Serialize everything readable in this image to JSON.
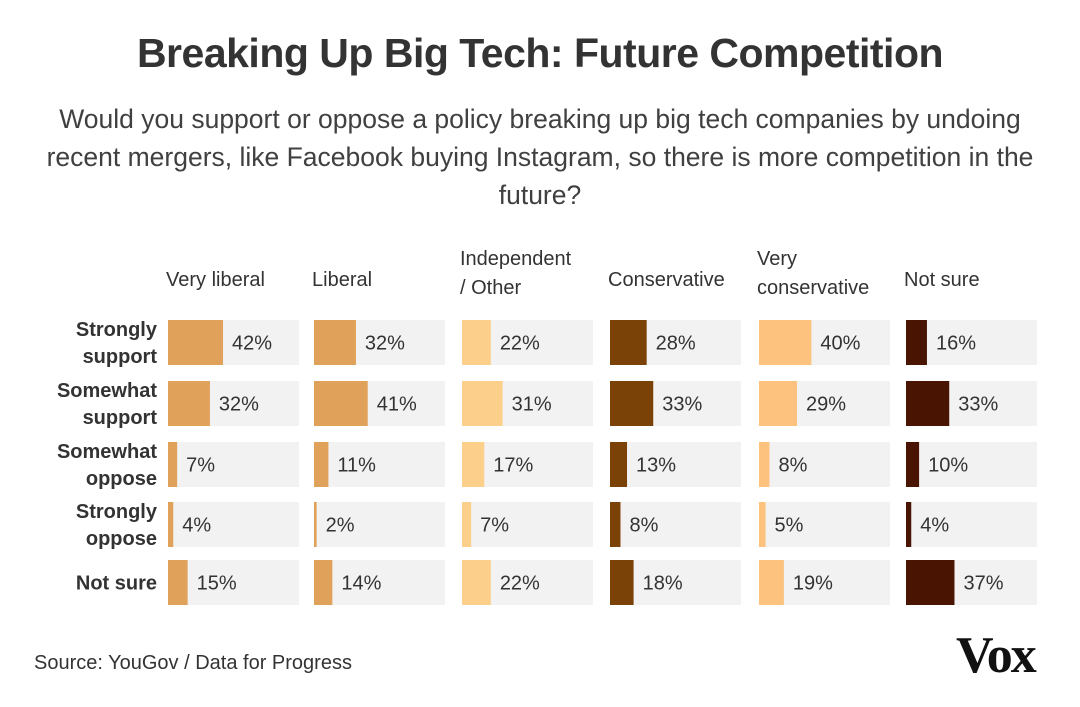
{
  "title": "Breaking Up Big Tech: Future Competition",
  "subtitle": "Would you support or oppose a policy breaking up big tech companies by undoing recent mergers, like Facebook buying Instagram, so there is more competition in the future?",
  "source": "Source: YouGov / Data for Progress",
  "logo": "Vox",
  "chart_data": {
    "type": "bar",
    "orientation": "horizontal-small-multiples",
    "unit": "%",
    "xlim": [
      0,
      100
    ],
    "grid": false,
    "columns": [
      {
        "name": "Very liberal",
        "label_lines": [
          "Very liberal"
        ],
        "color": "#e0a15a",
        "values": [
          42,
          32,
          7,
          4,
          15
        ]
      },
      {
        "name": "Liberal",
        "label_lines": [
          "Liberal"
        ],
        "color": "#e0a15a",
        "values": [
          32,
          41,
          11,
          2,
          14
        ]
      },
      {
        "name": "Independent / Other",
        "label_lines": [
          "Independent",
          "/ Other"
        ],
        "color": "#fcd08a",
        "values": [
          22,
          31,
          17,
          7,
          22
        ]
      },
      {
        "name": "Conservative",
        "label_lines": [
          "Conservative"
        ],
        "color": "#7a4206",
        "values": [
          28,
          33,
          13,
          8,
          18
        ]
      },
      {
        "name": "Very conservative",
        "label_lines": [
          "Very",
          "conservative"
        ],
        "color": "#fcc27e",
        "values": [
          40,
          29,
          8,
          5,
          19
        ]
      },
      {
        "name": "Not sure",
        "label_lines": [
          "Not sure"
        ],
        "color": "#4a1403",
        "values": [
          16,
          33,
          10,
          4,
          37
        ]
      }
    ],
    "rows": [
      {
        "name": "Strongly support",
        "label_lines": [
          "Strongly",
          "support"
        ]
      },
      {
        "name": "Somewhat support",
        "label_lines": [
          "Somewhat",
          "support"
        ]
      },
      {
        "name": "Somewhat oppose",
        "label_lines": [
          "Somewhat",
          "oppose"
        ]
      },
      {
        "name": "Strongly oppose",
        "label_lines": [
          "Strongly",
          "oppose"
        ]
      },
      {
        "name": "Not sure",
        "label_lines": [
          "Not sure"
        ]
      }
    ],
    "track_color": "#f2f2f2"
  }
}
